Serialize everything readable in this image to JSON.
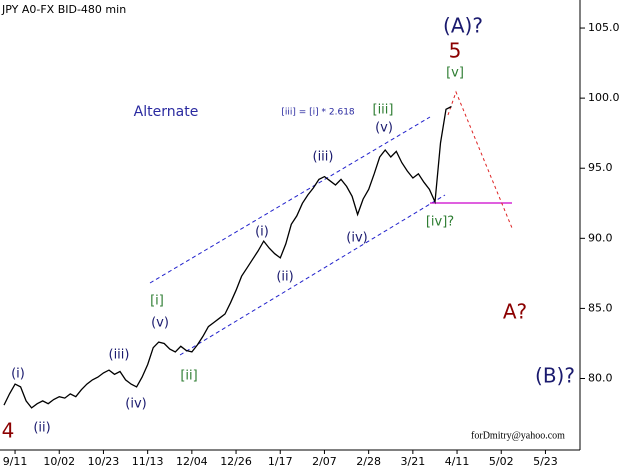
{
  "chart_data": {
    "type": "line",
    "title": "JPY A0-FX BID-480 min",
    "categories": [
      null,
      null,
      "9/11",
      null,
      null,
      null,
      null,
      null,
      null,
      null,
      "10/02",
      null,
      null,
      null,
      null,
      null,
      null,
      null,
      "10/23",
      null,
      null,
      null,
      null,
      null,
      null,
      null,
      "11/13",
      null,
      null,
      null,
      null,
      null,
      null,
      null,
      "12/04",
      null,
      null,
      null,
      null,
      null,
      null,
      null,
      "12/26",
      null,
      null,
      null,
      null,
      null,
      null,
      null,
      "1/17",
      null,
      null,
      null,
      null,
      null,
      null,
      null,
      "2/07",
      null,
      null,
      null,
      null,
      null,
      null,
      null,
      "2/28",
      null,
      null,
      null,
      null,
      null,
      null,
      null,
      "3/21",
      null,
      null,
      null,
      null,
      null,
      null,
      null,
      "4/11",
      null,
      null,
      null,
      null,
      null,
      null,
      null,
      "5/02",
      null,
      null,
      null,
      null,
      null,
      null,
      null,
      "5/23",
      null,
      null,
      null,
      null,
      null
    ],
    "series": [
      {
        "name": "JPY A0-FX",
        "color": "#000000",
        "values": [
          78.1,
          78.9,
          79.6,
          79.4,
          78.4,
          77.9,
          78.2,
          78.4,
          78.2,
          78.5,
          78.7,
          78.6,
          78.9,
          78.7,
          79.2,
          79.6,
          79.9,
          80.1,
          80.4,
          80.6,
          80.3,
          80.5,
          79.9,
          79.6,
          79.4,
          80.1,
          81.0,
          82.2,
          82.6,
          82.5,
          82.1,
          81.9,
          82.3,
          82.0,
          81.9,
          82.4,
          83.0,
          83.7,
          84.0,
          84.3,
          84.6,
          85.4,
          86.3,
          87.3,
          87.9,
          88.5,
          89.1,
          89.8,
          89.3,
          88.9,
          88.6,
          89.6,
          91.0,
          91.6,
          92.5,
          93.1,
          93.6,
          94.2,
          94.4,
          94.1,
          93.8,
          94.2,
          93.7,
          93.0,
          91.7,
          92.8,
          93.5,
          94.6,
          95.8,
          96.3,
          95.8,
          96.2,
          95.4,
          94.8,
          94.3,
          94.6,
          94.0,
          93.5,
          92.6,
          96.8,
          99.2,
          99.4,
          null,
          null,
          null,
          null,
          null,
          null,
          null,
          null,
          null,
          null,
          null,
          null,
          null,
          null,
          null,
          null,
          null,
          null,
          null,
          null,
          null,
          null
        ]
      }
    ],
    "ylim": [
      74.9,
      107
    ],
    "yticks": [
      {
        "value": 80,
        "label": "80.0"
      },
      {
        "value": 85,
        "label": "85.0"
      },
      {
        "value": 90,
        "label": "90.0"
      },
      {
        "value": 95,
        "label": "95.0"
      },
      {
        "value": 100,
        "label": "100.0"
      },
      {
        "value": 105,
        "label": "105.0"
      }
    ],
    "grid": false,
    "annotations": [
      {
        "text": "(A)?",
        "color": "#1a1a6e"
      },
      {
        "text": "5",
        "color": "#8b0000"
      },
      {
        "text": "[v]",
        "color": "#2e7d32"
      },
      {
        "text": "Alternate",
        "color": "#2a2aa0"
      },
      {
        "text": "[iii] = [i] * 2.618",
        "color": "#2a2aa0"
      },
      {
        "text": "[iii]",
        "color": "#2e7d32"
      },
      {
        "text": "(v)",
        "color": "#1a1a6e"
      },
      {
        "text": "(iii)",
        "color": "#1a1a6e"
      },
      {
        "text": "(i)",
        "color": "#1a1a6e"
      },
      {
        "text": "(ii)",
        "color": "#1a1a6e"
      },
      {
        "text": "(iv)",
        "color": "#1a1a6e"
      },
      {
        "text": "[iv]?",
        "color": "#2e7d32"
      },
      {
        "text": "A?",
        "color": "#8b0000"
      },
      {
        "text": "(B)?",
        "color": "#1a1a6e"
      },
      {
        "text": "[i]",
        "color": "#2e7d32"
      },
      {
        "text": "(v)",
        "color": "#1a1a6e"
      },
      {
        "text": "[ii]",
        "color": "#2e7d32"
      },
      {
        "text": "(iii)",
        "color": "#1a1a6e"
      },
      {
        "text": "(iv)",
        "color": "#1a1a6e"
      },
      {
        "text": "(i)",
        "color": "#1a1a6e"
      },
      {
        "text": "(ii)",
        "color": "#1a1a6e"
      },
      {
        "text": "4",
        "color": "#8b0000"
      },
      {
        "text": "forDmitry@yahoo.com",
        "color": "#000000"
      }
    ]
  }
}
